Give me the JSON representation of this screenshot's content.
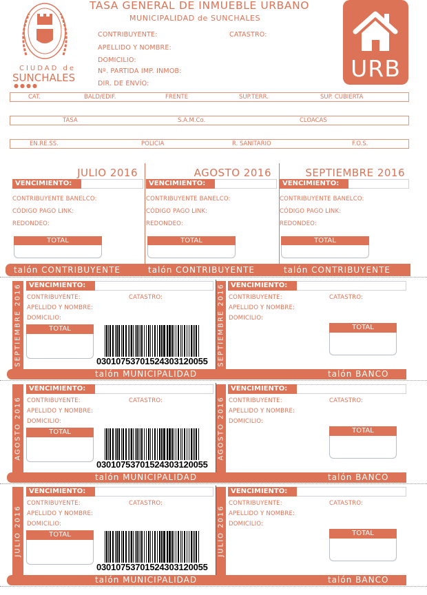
{
  "accent": "#dd7356",
  "header": {
    "title": "TASA GENERAL DE INMUEBLE URBANO",
    "subtitle": "MUNICIPALIDAD de SUNCHALES",
    "logo": {
      "ring_text": "MUNICIPALIDAD DE SUNCHALES",
      "line1": "CIUDAD de",
      "line2": "SUNCHALES"
    },
    "badge": "URB",
    "badge_icon": "house-icon",
    "fields": [
      "CONTRIBUYENTE:",
      "APELLIDO Y NOMBRE:",
      "DOMICILIO:",
      "Nº. PARTIDA IMP. INMOB:",
      "DIR. DE ENVÍO:"
    ],
    "catastro": "CATASTRO:"
  },
  "rows": [
    [
      "CAT.",
      "BALD/EDIF.",
      "FRENTE",
      "SUP.TERR.",
      "SUP. CUBIERTA"
    ],
    [
      "TASA",
      "S.A.M.Co.",
      "CLOACAS"
    ],
    [
      "EN.RE.SS.",
      "POLICIA",
      "R. SANITARIO",
      "F.O.S."
    ]
  ],
  "months": [
    {
      "title": "JULIO 2016"
    },
    {
      "title": "AGOSTO  2016"
    },
    {
      "title": "SEPTIEMBRE  2016"
    }
  ],
  "labels": {
    "vencimiento": "VENCIMIENTO:",
    "banelco": "CONTRIBUYENTE BANELCO:",
    "link": "CÓDIGO PAGO LINK:",
    "redondeo": "REDONDEO:",
    "total": "TOTAL",
    "contribuyente": "CONTRIBUYENTE:",
    "catastro": "CATASTRO:",
    "apellido": "APELLIDO Y NOMBRE:",
    "domicilio": "DOMICILIO:",
    "talon_contribuyente": "talón CONTRIBUYENTE",
    "talon_municipalidad": "talón MUNICIPALIDAD",
    "talon_banco": "talón BANCO"
  },
  "stubs": [
    {
      "month": "SEPTIEMBRE 2016",
      "barcode": "03010753701524303120055"
    },
    {
      "month": "AGOSTO 2016",
      "barcode": "03010753701524303120055"
    },
    {
      "month": "JULIO 2016",
      "barcode": "03010753701524303120055"
    }
  ]
}
